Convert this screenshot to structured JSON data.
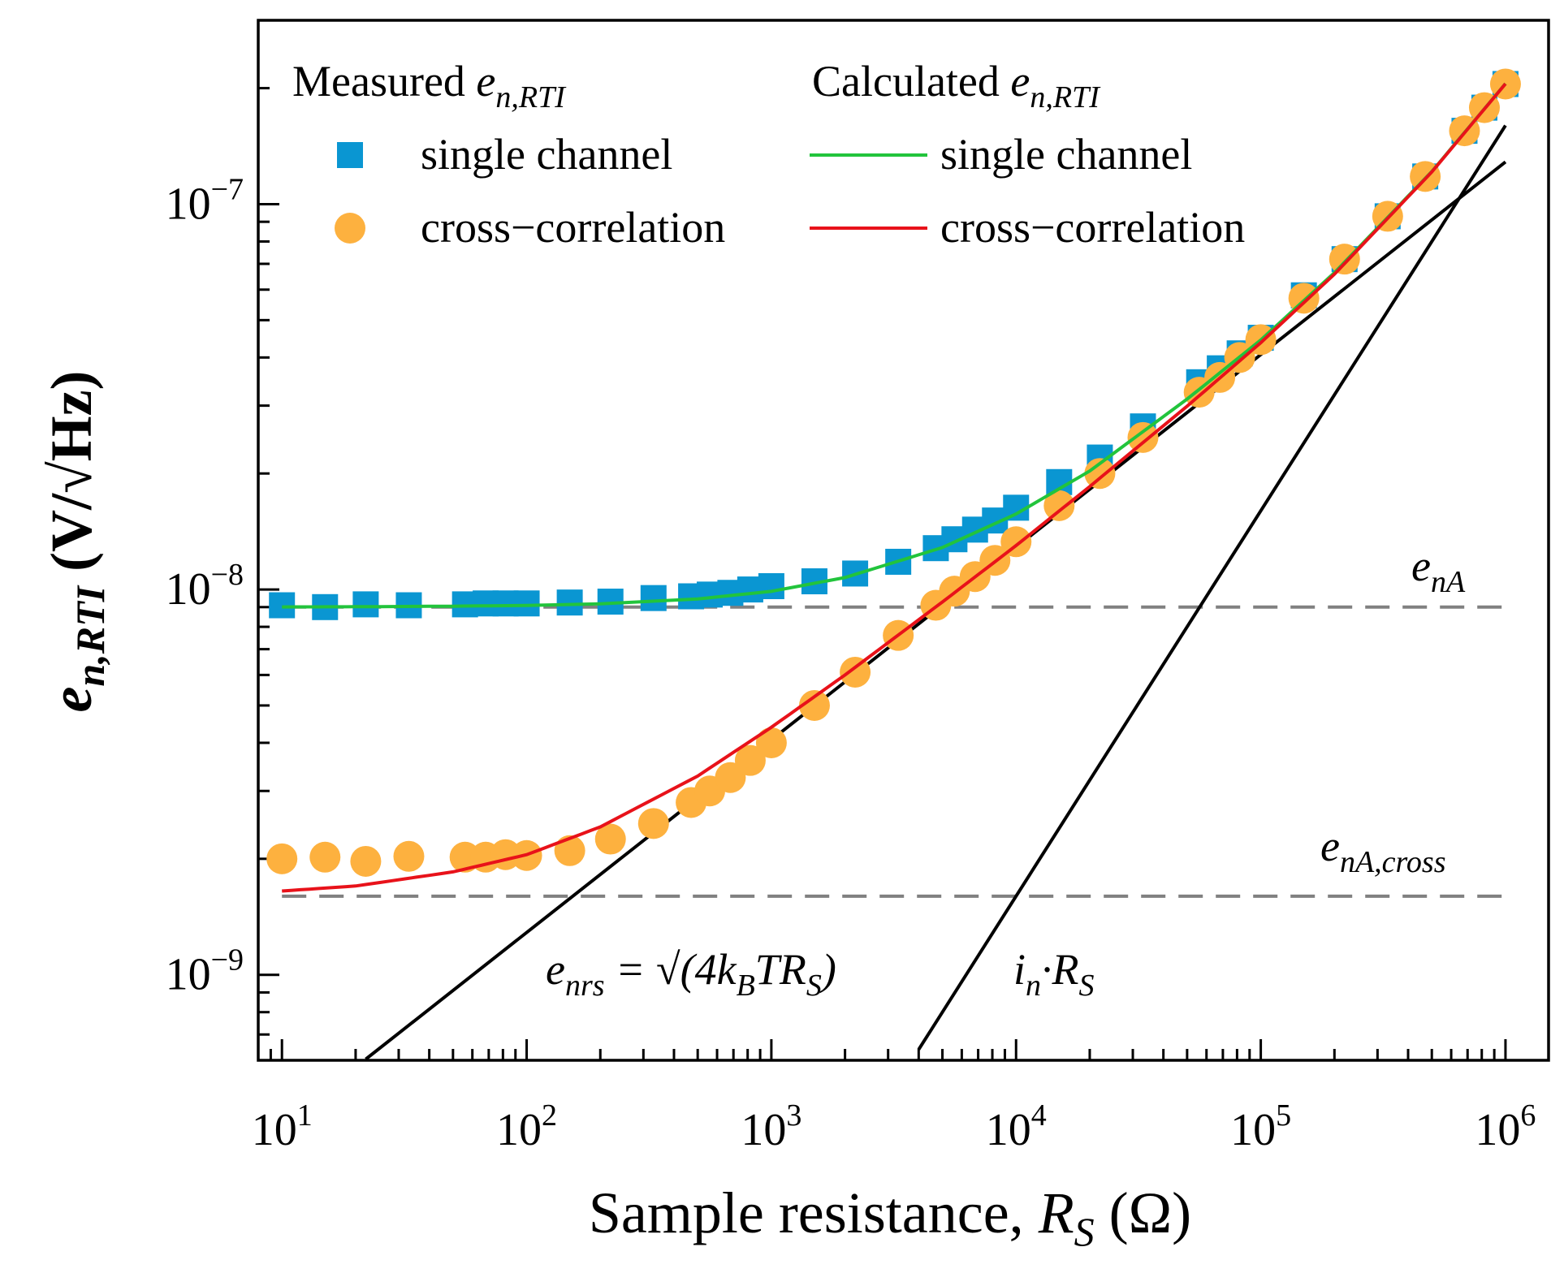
{
  "chart_data": {
    "type": "scatter",
    "xscale": "log",
    "yscale": "log",
    "xlim": [
      8,
      1500000
    ],
    "ylim": [
      6e-10,
      3e-07
    ],
    "xlabel": {
      "main": "Sample resistance, ",
      "var": "R",
      "sub": "S",
      "unit": " (Ω)"
    },
    "ylabel": {
      "var": "e",
      "sub": "n,RTI",
      "unit": " (V/√Hz)"
    },
    "x_ticks": [
      {
        "value": 10,
        "base": "10",
        "exp": "1"
      },
      {
        "value": 100,
        "base": "10",
        "exp": "2"
      },
      {
        "value": 1000,
        "base": "10",
        "exp": "3"
      },
      {
        "value": 10000,
        "base": "10",
        "exp": "4"
      },
      {
        "value": 100000,
        "base": "10",
        "exp": "5"
      },
      {
        "value": 1000000,
        "base": "10",
        "exp": "6"
      }
    ],
    "y_ticks": [
      {
        "value": 1e-09,
        "base": "10",
        "exp": "−9"
      },
      {
        "value": 1e-08,
        "base": "10",
        "exp": "−8"
      },
      {
        "value": 1e-07,
        "base": "10",
        "exp": "−7"
      }
    ],
    "legend": {
      "placement": "top-left",
      "measured_title": {
        "main": "Measured ",
        "var": "e",
        "sub": "n,RTI"
      },
      "calculated_title": {
        "main": "Calculated ",
        "var": "e",
        "sub": "n,RTI"
      },
      "entries": [
        "single channel",
        "cross−correlation",
        "single channel",
        "cross−correlation"
      ]
    },
    "colors": {
      "measured_single": "#0a96d2",
      "measured_cross": "#fdb13f",
      "calc_single": "#22c43c",
      "calc_cross": "#e8121a",
      "reference": "#000000",
      "floor": "#808080"
    },
    "x": [
      10,
      15,
      22,
      33,
      56,
      68,
      82,
      100,
      150,
      220,
      330,
      470,
      560,
      680,
      820,
      1000,
      1500,
      2200,
      3300,
      4700,
      5600,
      6800,
      8200,
      10000,
      15000,
      22000,
      33000,
      56000,
      68000,
      82000,
      100000,
      150000,
      220000,
      330000,
      470000,
      680000,
      820000,
      1000000
    ],
    "series": [
      {
        "name": "Measured single channel",
        "marker": "square",
        "unit": "nV/√Hz",
        "values": [
          9.1,
          9.0,
          9.15,
          9.1,
          9.15,
          9.2,
          9.2,
          9.2,
          9.25,
          9.3,
          9.5,
          9.6,
          9.7,
          9.8,
          10.0,
          10.2,
          10.5,
          11.0,
          11.8,
          12.8,
          13.5,
          14.3,
          15.1,
          16.3,
          19.0,
          22.0,
          26.5,
          34.5,
          37.5,
          41.0,
          45.0,
          58.0,
          72.0,
          93.0,
          118.0,
          155.0,
          178.0,
          205.0
        ]
      },
      {
        "name": "Measured cross-correlation",
        "marker": "circle",
        "unit": "nV/√Hz",
        "values": [
          2.0,
          2.02,
          1.97,
          2.03,
          2.02,
          2.02,
          2.05,
          2.04,
          2.1,
          2.25,
          2.47,
          2.8,
          3.0,
          3.25,
          3.6,
          4.0,
          5.0,
          6.1,
          7.6,
          9.1,
          9.9,
          10.8,
          11.9,
          13.3,
          16.5,
          20.0,
          24.8,
          32.5,
          35.5,
          40.0,
          44.5,
          57.0,
          72.0,
          93.0,
          118.0,
          155.0,
          178.0,
          205.0
        ]
      }
    ],
    "curves": {
      "x": [
        10,
        20,
        50,
        100,
        200,
        500,
        1000,
        2000,
        5000,
        10000,
        20000,
        50000,
        100000,
        200000,
        500000,
        1000000
      ],
      "calc_single": [
        9.01,
        9.02,
        9.05,
        9.09,
        9.18,
        9.45,
        9.89,
        10.74,
        12.85,
        15.7,
        20.3,
        31.2,
        44.4,
        66.4,
        121.5,
        205.5
      ],
      "calc_cross": [
        1.65,
        1.7,
        1.85,
        2.05,
        2.42,
        3.28,
        4.39,
        6.0,
        9.28,
        13.0,
        18.5,
        29.9,
        43.7,
        65.8,
        121.2,
        205.3
      ],
      "thermal_line": {
        "x": [
          22,
          1000000
        ],
        "values": [
          0.604,
          128.7
        ]
      },
      "current_line": {
        "x": [
          4000,
          1000000
        ],
        "values": [
          0.64,
          160.0
        ]
      },
      "enA": 9.0,
      "enA_cross": 1.6
    },
    "annotations": {
      "enA": {
        "var": "e",
        "sub": "nA"
      },
      "enA_cross": {
        "var": "e",
        "sub": "nA,cross"
      },
      "thermal": {
        "var": "e",
        "sub": "nrs",
        "eq": " = √(4k",
        "sub2": "B",
        "mid": "TR",
        "sub3": "S",
        "end": ")"
      },
      "current": {
        "var": "i",
        "sub": "n",
        "dot": "·R",
        "sub2": "S"
      }
    }
  }
}
